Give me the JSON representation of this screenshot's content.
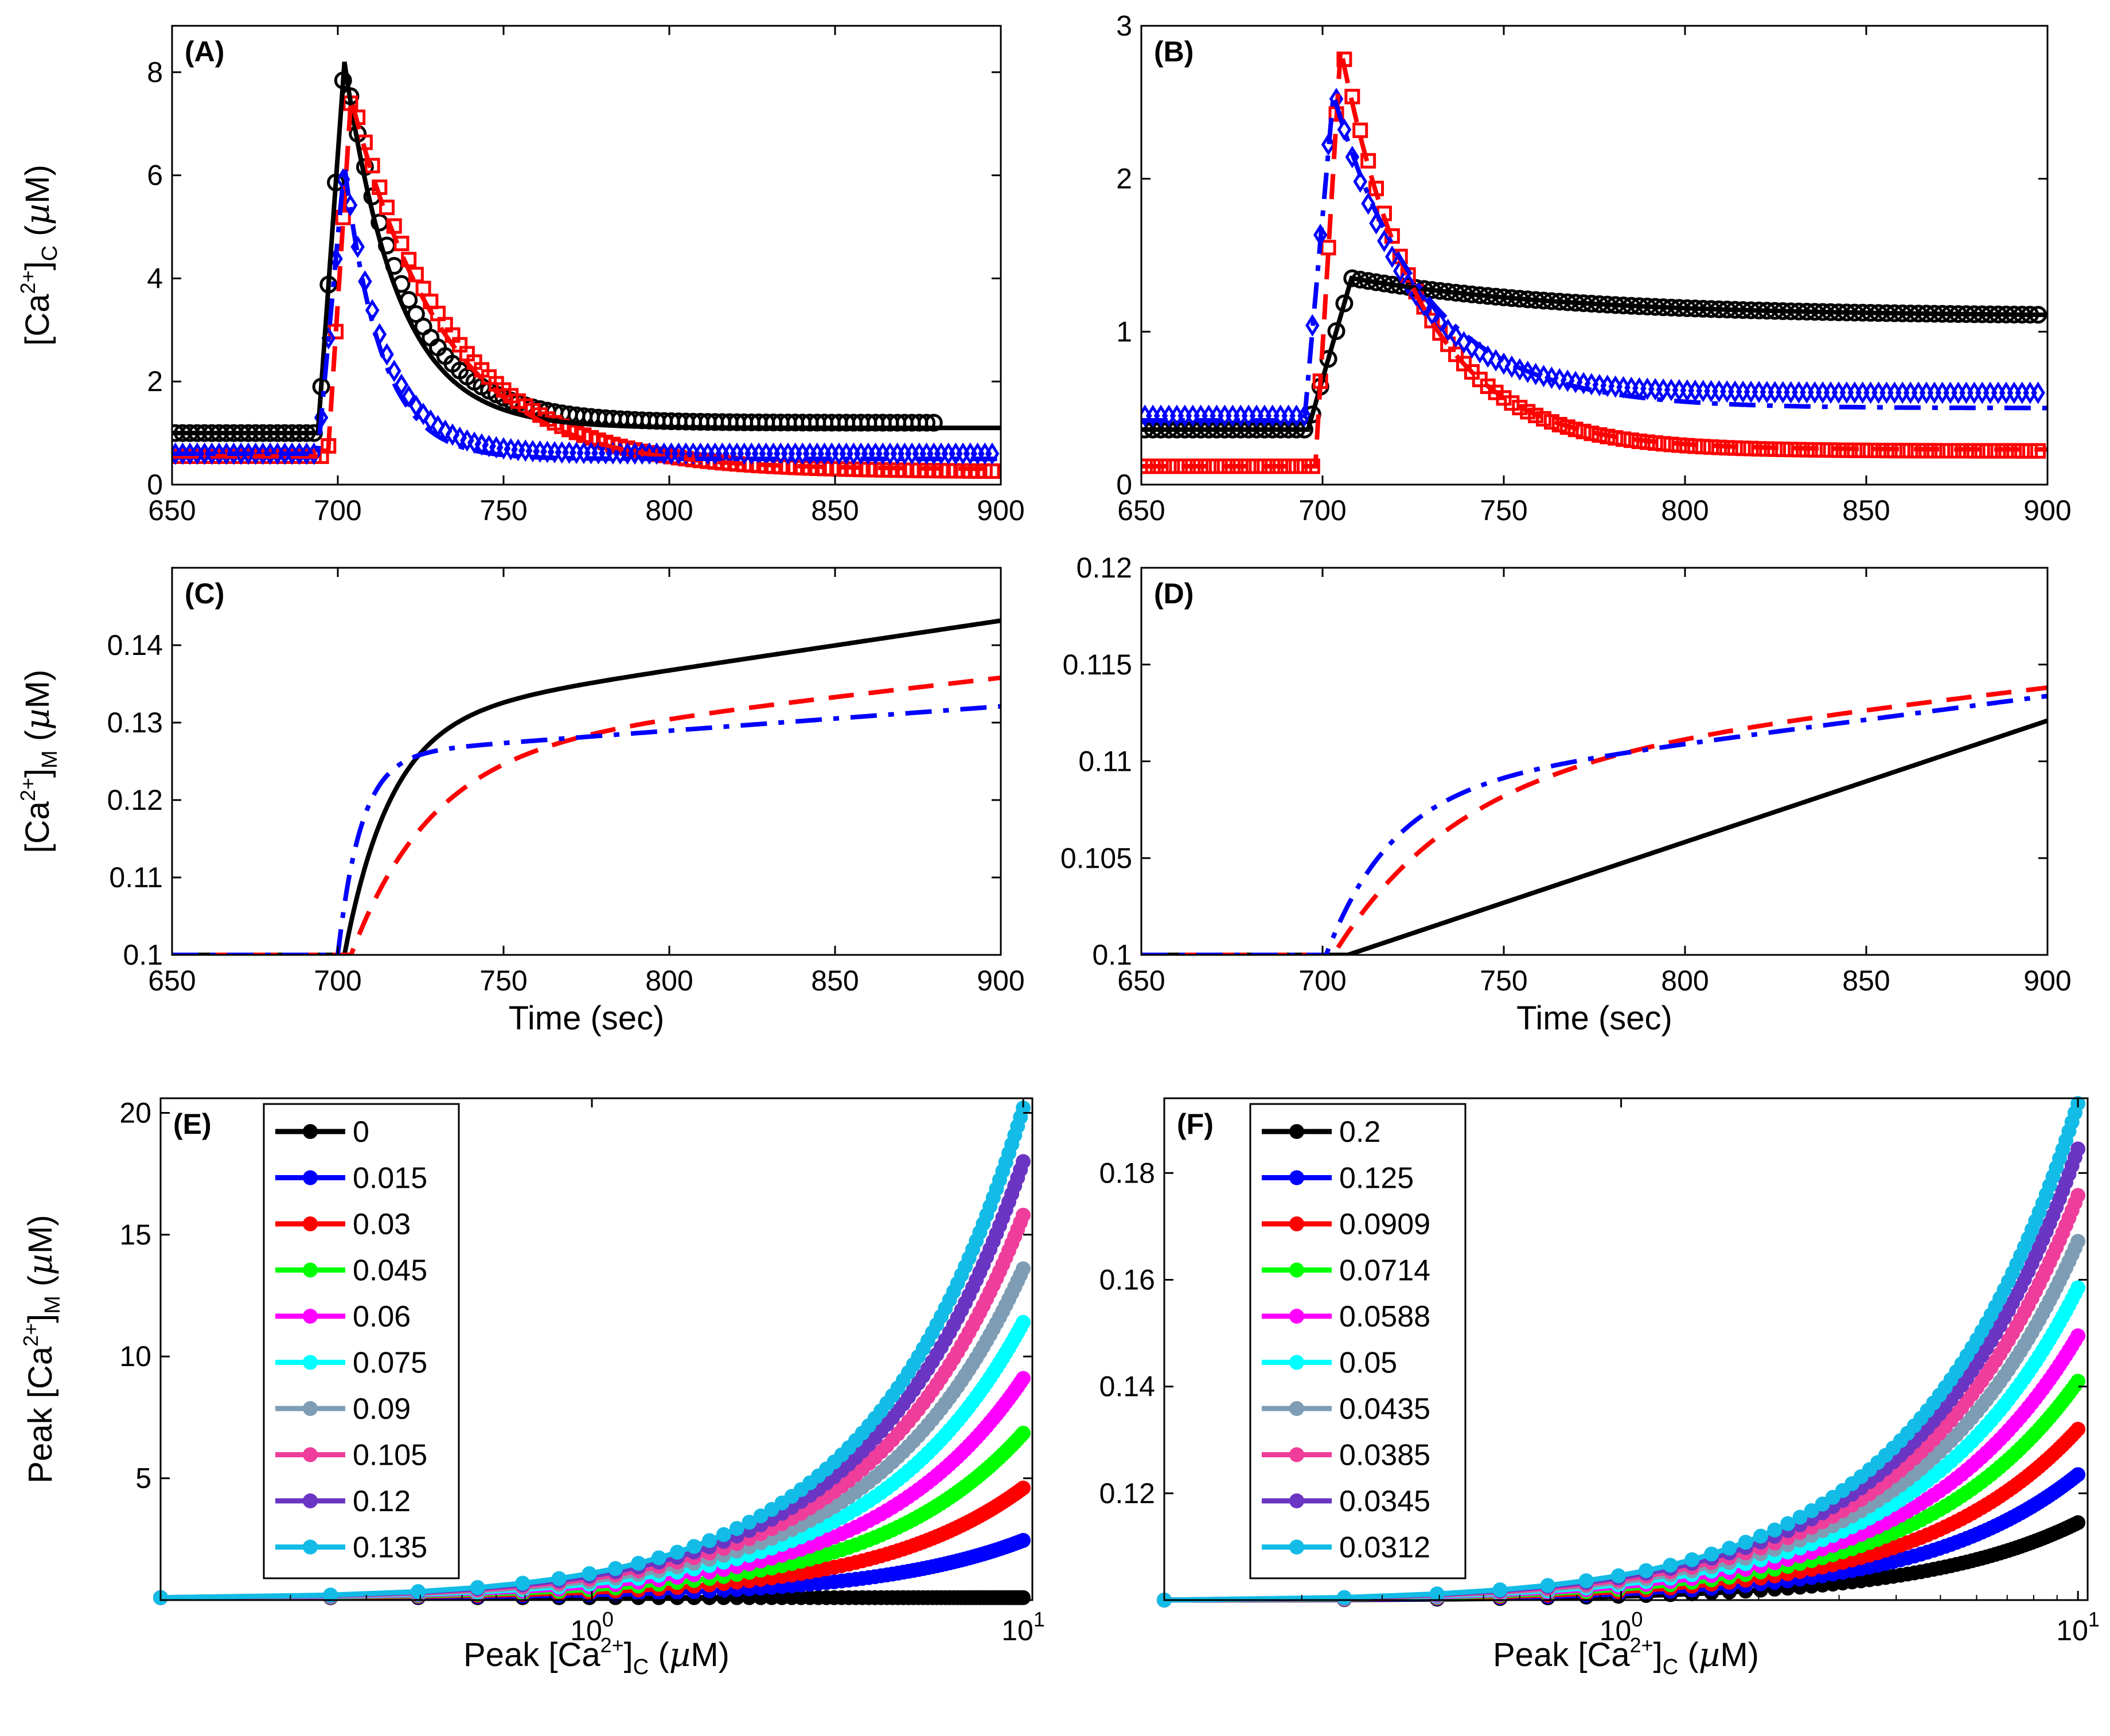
{
  "colors": {
    "black": "#000000",
    "blue": "#0000ff",
    "red": "#ff0000",
    "green": "#00ff00",
    "magenta": "#ff00ff",
    "cyan": "#00ffff",
    "grayblue": "#7e9db5",
    "pink": "#ef3d9b",
    "purple": "#6a35c3",
    "skyblue": "#12bce6"
  },
  "chart_data": [
    {
      "id": "A",
      "type": "line",
      "title": "(A)",
      "ylabel": "[Ca2+]C (µM)",
      "ylabel_parts": [
        "[Ca",
        "2+",
        "]",
        "C",
        " (",
        "µ",
        "M)"
      ],
      "xlabel": "",
      "xlim": [
        650,
        900
      ],
      "ylim": [
        0,
        8.9
      ],
      "xticks": [
        650,
        700,
        750,
        800,
        850,
        900
      ],
      "yticks": [
        0,
        2,
        4,
        6,
        8
      ],
      "xtick_labels": [
        "650",
        "700",
        "750",
        "800",
        "850",
        "900"
      ],
      "ytick_labels": [
        "0",
        "2",
        "4",
        "6",
        "8"
      ],
      "series": [
        {
          "name": "model black",
          "color": "black",
          "style": "solid",
          "kind": "transient",
          "params": {
            "base": 1.0,
            "onset": 694,
            "peak_t": 702,
            "peak": 8.2,
            "plateau": 1.1,
            "tau": 16
          }
        },
        {
          "name": "model red",
          "color": "red",
          "style": "dash",
          "kind": "transient",
          "params": {
            "base": 0.55,
            "onset": 697,
            "peak_t": 704,
            "peak": 7.5,
            "plateau": 0.3,
            "tau": 28
          }
        },
        {
          "name": "model blue",
          "color": "blue",
          "style": "dashdot",
          "kind": "transient",
          "params": {
            "base": 0.6,
            "onset": 694,
            "peak_t": 702,
            "peak": 6.2,
            "plateau": 0.5,
            "tau": 11
          }
        },
        {
          "name": "data black",
          "color": "black",
          "marker": "circle",
          "kind": "transient",
          "t_end": 880,
          "step": 2.2,
          "params": {
            "base": 1.0,
            "onset": 694,
            "peak_t": 702,
            "peak": 8.2,
            "plateau": 1.2,
            "tau": 18
          }
        },
        {
          "name": "data red",
          "color": "red",
          "marker": "square",
          "kind": "transient",
          "t_end": 898,
          "step": 2.2,
          "params": {
            "base": 0.55,
            "onset": 697,
            "peak_t": 704,
            "peak": 7.6,
            "plateau": 0.25,
            "tau": 30
          }
        },
        {
          "name": "data blue",
          "color": "blue",
          "marker": "diamond",
          "kind": "transient",
          "t_end": 898,
          "step": 2.2,
          "params": {
            "base": 0.6,
            "onset": 694,
            "peak_t": 702,
            "peak": 6.2,
            "plateau": 0.6,
            "tau": 12
          }
        }
      ]
    },
    {
      "id": "B",
      "type": "line",
      "title": "(B)",
      "ylabel": "",
      "xlabel": "",
      "xlim": [
        650,
        900
      ],
      "ylim": [
        0,
        3
      ],
      "xticks": [
        650,
        700,
        750,
        800,
        850,
        900
      ],
      "yticks": [
        0,
        1,
        2,
        3
      ],
      "xtick_labels": [
        "650",
        "700",
        "750",
        "800",
        "850",
        "900"
      ],
      "ytick_labels": [
        "0",
        "1",
        "2",
        "3"
      ],
      "series": [
        {
          "name": "model black",
          "color": "black",
          "style": "solid",
          "kind": "transient",
          "params": {
            "base": 0.36,
            "onset": 696,
            "peak_t": 708,
            "peak": 1.35,
            "plateau": 1.1,
            "tau": 60
          }
        },
        {
          "name": "model red",
          "color": "red",
          "style": "dash",
          "kind": "transient",
          "params": {
            "base": 0.12,
            "onset": 698,
            "peak_t": 705,
            "peak": 2.85,
            "plateau": 0.23,
            "tau": 22
          }
        },
        {
          "name": "model blue",
          "color": "blue",
          "style": "dashdot",
          "kind": "transient",
          "params": {
            "base": 0.42,
            "onset": 695,
            "peak_t": 703,
            "peak": 2.55,
            "plateau": 0.5,
            "tau": 25
          }
        },
        {
          "name": "data black",
          "color": "black",
          "marker": "circle",
          "kind": "transient",
          "t_end": 898,
          "step": 2.2,
          "params": {
            "base": 0.36,
            "onset": 696,
            "peak_t": 708,
            "peak": 1.35,
            "plateau": 1.1,
            "tau": 60
          }
        },
        {
          "name": "data red",
          "color": "red",
          "marker": "square",
          "kind": "transient",
          "t_end": 898,
          "step": 2.2,
          "params": {
            "base": 0.12,
            "onset": 698,
            "peak_t": 705,
            "peak": 2.9,
            "plateau": 0.22,
            "tau": 22
          }
        },
        {
          "name": "data blue",
          "color": "blue",
          "marker": "diamond",
          "kind": "transient",
          "t_end": 898,
          "step": 2.2,
          "params": {
            "base": 0.45,
            "onset": 695,
            "peak_t": 703,
            "peak": 2.6,
            "plateau": 0.6,
            "tau": 20
          }
        }
      ]
    },
    {
      "id": "C",
      "type": "line",
      "title": "(C)",
      "ylabel": "[Ca2+]M (µM)",
      "ylabel_parts": [
        "[Ca",
        "2+",
        "]",
        "M",
        " (",
        "µ",
        "M)"
      ],
      "xlabel": "Time (sec)",
      "xlim": [
        650,
        900
      ],
      "ylim": [
        0.1,
        0.15
      ],
      "xticks": [
        650,
        700,
        750,
        800,
        850,
        900
      ],
      "yticks": [
        0.1,
        0.11,
        0.12,
        0.13,
        0.14
      ],
      "xtick_labels": [
        "650",
        "700",
        "750",
        "800",
        "850",
        "900"
      ],
      "ytick_labels": [
        "0.1",
        "0.11",
        "0.12",
        "0.13",
        "0.14"
      ],
      "series": [
        {
          "name": "black",
          "color": "black",
          "style": "solid",
          "kind": "rise",
          "params": {
            "base": 0.1,
            "onset": 702,
            "a": 0.0305,
            "tau": 14,
            "slope": 6.4e-05
          }
        },
        {
          "name": "red",
          "color": "red",
          "style": "dash",
          "kind": "rise",
          "params": {
            "base": 0.1,
            "onset": 704,
            "a": 0.0262,
            "tau": 24,
            "slope": 4.9e-05
          }
        },
        {
          "name": "blue",
          "color": "blue",
          "style": "dashdot",
          "kind": "rise",
          "params": {
            "base": 0.1,
            "onset": 700,
            "a": 0.0258,
            "tau": 7,
            "slope": 3.15e-05
          }
        }
      ]
    },
    {
      "id": "D",
      "type": "line",
      "title": "(D)",
      "ylabel": "",
      "xlabel": "Time (sec)",
      "xlim": [
        650,
        900
      ],
      "ylim": [
        0.1,
        0.12
      ],
      "xticks": [
        650,
        700,
        750,
        800,
        850,
        900
      ],
      "yticks": [
        0.1,
        0.105,
        0.11,
        0.115,
        0.12
      ],
      "xtick_labels": [
        "650",
        "700",
        "750",
        "800",
        "850",
        "900"
      ],
      "ytick_labels": [
        "0.1",
        "0.105",
        "0.11",
        "0.115",
        "0.12"
      ],
      "series": [
        {
          "name": "black",
          "color": "black",
          "style": "solid",
          "kind": "rise",
          "params": {
            "base": 0.1,
            "onset": 707,
            "a": 0.0,
            "tau": 10,
            "slope": 6.27e-05
          }
        },
        {
          "name": "red",
          "color": "red",
          "style": "dash",
          "kind": "rise",
          "params": {
            "base": 0.1,
            "onset": 703,
            "a": 0.0096,
            "tau": 34,
            "slope": 2.15e-05
          }
        },
        {
          "name": "blue",
          "color": "blue",
          "style": "dashdot",
          "kind": "rise",
          "params": {
            "base": 0.1,
            "onset": 701,
            "a": 0.0085,
            "tau": 18,
            "slope": 2.45e-05
          }
        }
      ]
    },
    {
      "id": "E",
      "type": "scatter",
      "title": "(E)",
      "xscale": "log",
      "ylabel": "Peak [Ca2+]M (µM)",
      "ylabel_parts": [
        "Peak [Ca",
        "2+",
        "]",
        "M",
        " (",
        "µ",
        "M)"
      ],
      "xlabel": "Peak [Ca2+]C (µM)",
      "xlabel_parts": [
        "Peak [Ca",
        "2+",
        "]",
        "C",
        " (",
        "µ",
        "M)"
      ],
      "xlim": [
        0.1,
        10.5
      ],
      "ylim": [
        0,
        20.6
      ],
      "xticks": [
        1,
        10
      ],
      "xtick_labels": [
        [
          "10",
          "0"
        ],
        [
          "10",
          "1"
        ]
      ],
      "yticks": [
        5,
        10,
        15,
        20
      ],
      "ytick_labels": [
        "5",
        "10",
        "15",
        "20"
      ],
      "y0": 0.1,
      "n_points": 68,
      "series": [
        {
          "name": "0",
          "color": "black",
          "peak": 0.1
        },
        {
          "name": "0.015",
          "color": "blue",
          "peak": 2.45
        },
        {
          "name": "0.03",
          "color": "red",
          "peak": 4.6
        },
        {
          "name": "0.045",
          "color": "green",
          "peak": 6.85
        },
        {
          "name": "0.06",
          "color": "magenta",
          "peak": 9.1
        },
        {
          "name": "0.075",
          "color": "cyan",
          "peak": 11.4
        },
        {
          "name": "0.09",
          "color": "grayblue",
          "peak": 13.6
        },
        {
          "name": "0.105",
          "color": "pink",
          "peak": 15.8
        },
        {
          "name": "0.12",
          "color": "purple",
          "peak": 18.0
        },
        {
          "name": "0.135",
          "color": "skyblue",
          "peak": 20.2
        }
      ]
    },
    {
      "id": "F",
      "type": "scatter",
      "title": "(F)",
      "xscale": "log",
      "ylabel": "",
      "xlabel": "Peak [Ca2+]C (µM)",
      "xlabel_parts": [
        "Peak [Ca",
        "2+",
        "]",
        "C",
        " (",
        "µ",
        "M)"
      ],
      "xlim": [
        0.1,
        10.5
      ],
      "ylim": [
        0.1,
        0.194
      ],
      "xticks": [
        1,
        10
      ],
      "xtick_labels": [
        [
          "10",
          "0"
        ],
        [
          "10",
          "1"
        ]
      ],
      "yticks": [
        0.12,
        0.14,
        0.16,
        0.18
      ],
      "ytick_labels": [
        "0.12",
        "0.14",
        "0.16",
        "0.18"
      ],
      "y0": 0.1,
      "n_points": 68,
      "series": [
        {
          "name": "0.2",
          "color": "black",
          "peak": 0.1145
        },
        {
          "name": "0.125",
          "color": "blue",
          "peak": 0.1235
        },
        {
          "name": "0.0909",
          "color": "red",
          "peak": 0.132
        },
        {
          "name": "0.0714",
          "color": "green",
          "peak": 0.141
        },
        {
          "name": "0.0588",
          "color": "magenta",
          "peak": 0.1495
        },
        {
          "name": "0.05",
          "color": "cyan",
          "peak": 0.1585
        },
        {
          "name": "0.0435",
          "color": "grayblue",
          "peak": 0.1672
        },
        {
          "name": "0.0385",
          "color": "pink",
          "peak": 0.1758
        },
        {
          "name": "0.0345",
          "color": "purple",
          "peak": 0.1845
        },
        {
          "name": "0.0312",
          "color": "skyblue",
          "peak": 0.193
        }
      ]
    }
  ]
}
